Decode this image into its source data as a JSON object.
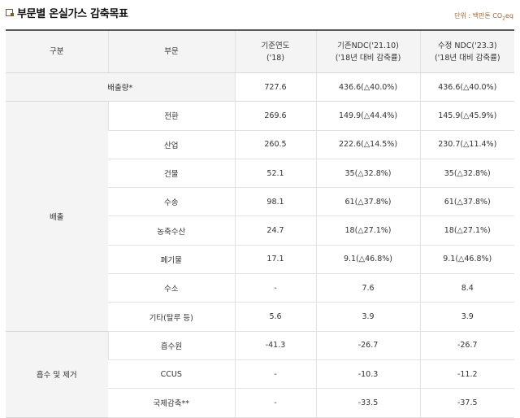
{
  "title": "부문별 온실가스 감축목표",
  "unit": {
    "prefix": "단위 : 백만톤 CO",
    "sub": "2",
    "suffix": "eq"
  },
  "headers": {
    "category": "구분",
    "sector": "부문",
    "base_line1": "기준연도",
    "base_line2": "('18)",
    "ndc_old_line1": "기존NDC('21.10)",
    "ndc_old_line2": "('18년 대비 감축률)",
    "ndc_new_line1": "수정 NDC('23.3)",
    "ndc_new_line2": "('18년 대비 감축률)"
  },
  "total": {
    "label": "배출량*",
    "base": "727.6",
    "ndc_old": "436.6(△40.0%)",
    "ndc_new": "436.6(△40.0%)"
  },
  "groups": [
    {
      "name": "배출",
      "rows": [
        {
          "sector": "전환",
          "base": "269.6",
          "ndc_old": "149.9(△44.4%)",
          "ndc_new": "145.9(△45.9%)"
        },
        {
          "sector": "산업",
          "base": "260.5",
          "ndc_old": "222.6(△14.5%)",
          "ndc_new": "230.7(△11.4%)"
        },
        {
          "sector": "건물",
          "base": "52.1",
          "ndc_old": "35(△32.8%)",
          "ndc_new": "35(△32.8%)"
        },
        {
          "sector": "수송",
          "base": "98.1",
          "ndc_old": "61(△37.8%)",
          "ndc_new": "61(△37.8%)"
        },
        {
          "sector": "농축수산",
          "base": "24.7",
          "ndc_old": "18(△27.1%)",
          "ndc_new": "18(△27.1%)"
        },
        {
          "sector": "폐기물",
          "base": "17.1",
          "ndc_old": "9.1(△46.8%)",
          "ndc_new": "9.1(△46.8%)"
        },
        {
          "sector": "수소",
          "base": "-",
          "ndc_old": "7.6",
          "ndc_new": "8.4"
        },
        {
          "sector": "기타(탈루 등)",
          "base": "5.6",
          "ndc_old": "3.9",
          "ndc_new": "3.9"
        }
      ]
    },
    {
      "name": "흡수 및 제거",
      "rows": [
        {
          "sector": "흡수원",
          "base": "-41.3",
          "ndc_old": "-26.7",
          "ndc_new": "-26.7"
        },
        {
          "sector": "CCUS",
          "base": "-",
          "ndc_old": "-10.3",
          "ndc_new": "-11.2"
        },
        {
          "sector": "국제감축**",
          "base": "-",
          "ndc_old": "-33.5",
          "ndc_new": "-37.5"
        }
      ]
    }
  ],
  "colors": {
    "header_bg": "#f4f4f4",
    "title_icon": "#7a5a2e",
    "unit_text": "#a0673a"
  }
}
